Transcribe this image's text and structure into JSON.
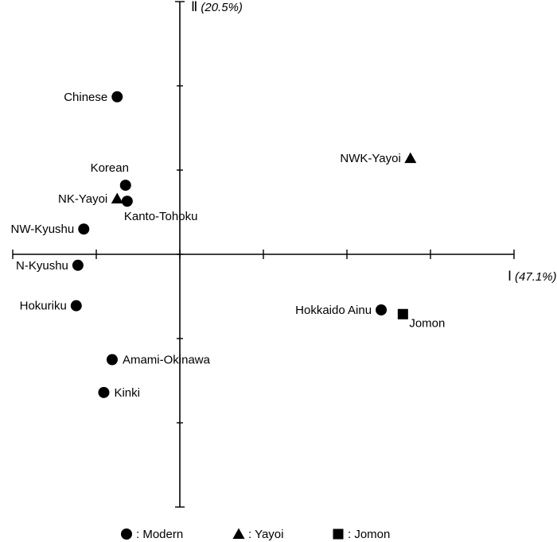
{
  "chart_data": {
    "type": "scatter",
    "title": "",
    "xlabel": "Ⅰ",
    "xlabel_pct": "(47.1%)",
    "ylabel": "Ⅱ",
    "ylabel_pct": "(20.5%)",
    "xlim": [
      -2.0,
      4.0
    ],
    "ylim": [
      -3.0,
      3.0
    ],
    "grid": false,
    "legend_position": "bottom",
    "legend": [
      {
        "marker": "circle",
        "label": ": Modern"
      },
      {
        "marker": "triangle",
        "label": ": Yayoi"
      },
      {
        "marker": "square",
        "label": ": Jomon"
      }
    ],
    "points": [
      {
        "label": "Chinese",
        "x": -0.75,
        "y": 1.87,
        "group": "Modern",
        "label_side": "left"
      },
      {
        "label": "Korean",
        "x": -0.65,
        "y": 0.82,
        "group": "Modern",
        "label_side": "above"
      },
      {
        "label": "NK-Yayoi",
        "x": -0.75,
        "y": 0.66,
        "group": "Yayoi",
        "label_side": "left"
      },
      {
        "label": "Kanto-Tohoku",
        "x": -0.63,
        "y": 0.63,
        "group": "Modern",
        "label_side": "below"
      },
      {
        "label": "NW-Kyushu",
        "x": -1.15,
        "y": 0.3,
        "group": "Modern",
        "label_side": "left"
      },
      {
        "label": "N-Kyushu",
        "x": -1.22,
        "y": -0.13,
        "group": "Modern",
        "label_side": "left"
      },
      {
        "label": "Hokuriku",
        "x": -1.24,
        "y": -0.61,
        "group": "Modern",
        "label_side": "left"
      },
      {
        "label": "Amami-Okinawa",
        "x": -0.81,
        "y": -1.25,
        "group": "Modern",
        "label_side": "right"
      },
      {
        "label": "Kinki",
        "x": -0.91,
        "y": -1.64,
        "group": "Modern",
        "label_side": "right"
      },
      {
        "label": "Hokkaido Ainu",
        "x": 2.41,
        "y": -0.66,
        "group": "Modern",
        "label_side": "left"
      },
      {
        "label": "Jomon",
        "x": 2.67,
        "y": -0.71,
        "group": "Jomon",
        "label_side": "below-right"
      },
      {
        "label": "NWK-Yayoi",
        "x": 2.76,
        "y": 1.14,
        "group": "Yayoi",
        "label_side": "left"
      }
    ]
  }
}
